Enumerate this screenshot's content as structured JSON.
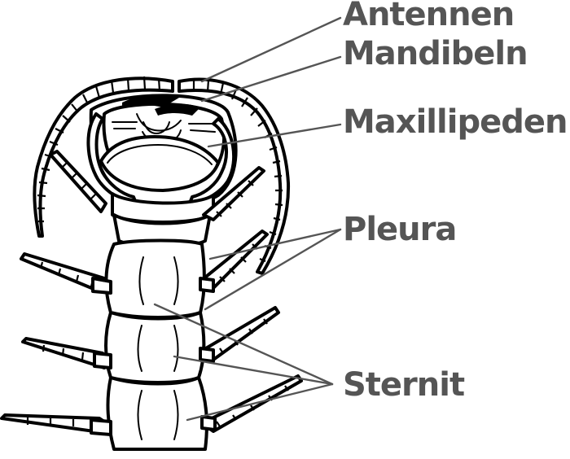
{
  "labels": {
    "antennen": "Antennen",
    "mandibeln": "Mandibeln",
    "maxillipeden": "Maxillipeden",
    "pleura": "Pleura",
    "sternit": "Sternit"
  },
  "colors": {
    "outline": "#000000",
    "leader_line": "#555555",
    "label_text": "#555555",
    "body_fill": "#ffffff"
  }
}
